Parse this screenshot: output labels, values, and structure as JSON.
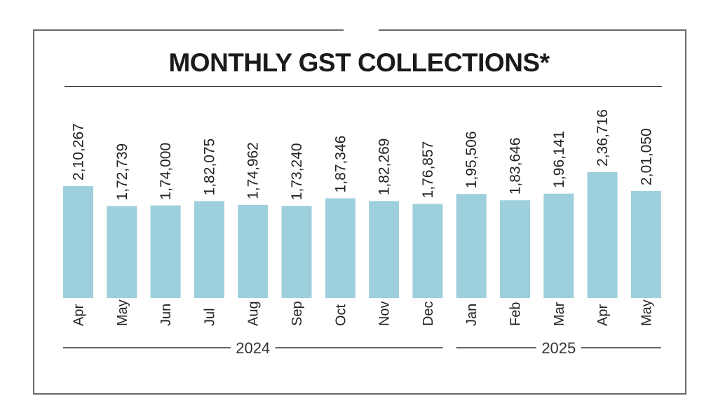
{
  "title": "MONTHLY GST COLLECTIONS*",
  "colors": {
    "bar": "#9ecfdc",
    "text": "#222222",
    "rule": "#333333"
  },
  "chart_data": {
    "type": "bar",
    "title": "MONTHLY GST COLLECTIONS*",
    "categories": [
      "Apr",
      "May",
      "Jun",
      "Jul",
      "Aug",
      "Sep",
      "Oct",
      "Nov",
      "Dec",
      "Jan",
      "Feb",
      "Mar",
      "Apr",
      "May"
    ],
    "values": [
      210267,
      172739,
      174000,
      182075,
      174962,
      173240,
      187346,
      182269,
      176857,
      195506,
      183646,
      196141,
      236716,
      201050
    ],
    "value_labels": [
      "2,10,267",
      "1,72,739",
      "1,74,000",
      "1,82,075",
      "1,74,962",
      "1,73,240",
      "1,87,346",
      "1,82,269",
      "1,76,857",
      "1,95,506",
      "1,83,646",
      "1,96,141",
      "2,36,716",
      "2,01,050"
    ],
    "year_groups": [
      {
        "label": "2024",
        "start": 0,
        "end": 8
      },
      {
        "label": "2025",
        "start": 9,
        "end": 13
      }
    ],
    "xlabel": "",
    "ylabel": "",
    "grid": false,
    "legend": "none"
  }
}
